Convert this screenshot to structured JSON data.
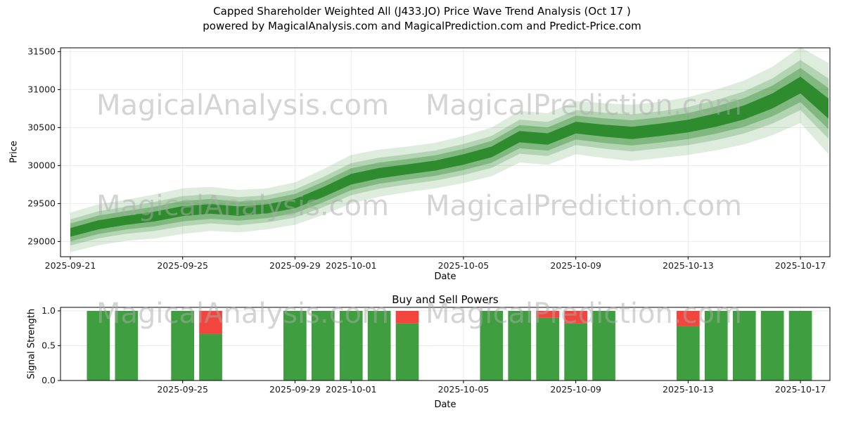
{
  "title": {
    "line1": "Capped Shareholder Weighted All (J433.JO) Price Wave Trend Analysis (Oct 17 )",
    "line2": "powered by MagicalAnalysis.com and MagicalPrediction.com and Predict-Price.com"
  },
  "watermarks": {
    "left": "MagicalAnalysis.com",
    "right": "MagicalPrediction.com"
  },
  "colors": {
    "fan_green": "#2e8b2e",
    "bar_green": "#3f9e3f",
    "bar_red": "#f2453d",
    "grid": "#ebebeb",
    "axis": "#000000",
    "watermark": "#ababab"
  },
  "chart_data": [
    {
      "type": "area",
      "name": "price-wave-fan",
      "xlabel": "Date",
      "ylabel": "Price",
      "ylim": [
        28800,
        31550
      ],
      "xlim": [
        -0.35,
        27.05
      ],
      "grid": true,
      "yticks": [
        29000,
        29500,
        30000,
        30500,
        31000,
        31500
      ],
      "xticks": [
        {
          "day": 0,
          "label": "2025-09-21"
        },
        {
          "day": 4,
          "label": "2025-09-25"
        },
        {
          "day": 8,
          "label": "2025-09-29"
        },
        {
          "day": 10,
          "label": "2025-10-01"
        },
        {
          "day": 14,
          "label": "2025-10-05"
        },
        {
          "day": 18,
          "label": "2025-10-09"
        },
        {
          "day": 22,
          "label": "2025-10-13"
        },
        {
          "day": 26,
          "label": "2025-10-17"
        }
      ],
      "days": [
        0,
        1,
        2,
        3,
        4,
        5,
        6,
        7,
        8,
        9,
        10,
        11,
        12,
        13,
        14,
        15,
        16,
        17,
        18,
        19,
        20,
        21,
        22,
        23,
        24,
        25,
        26,
        27
      ],
      "median": [
        29120,
        29220,
        29280,
        29330,
        29400,
        29430,
        29400,
        29430,
        29500,
        29650,
        29820,
        29900,
        29950,
        30000,
        30080,
        30180,
        30380,
        30350,
        30500,
        30460,
        30430,
        30470,
        30520,
        30600,
        30700,
        30850,
        31060,
        30750
      ],
      "outer_halfwidth": [
        260,
        270,
        270,
        290,
        300,
        290,
        280,
        270,
        280,
        300,
        320,
        310,
        300,
        300,
        310,
        320,
        340,
        340,
        350,
        360,
        370,
        370,
        380,
        400,
        420,
        450,
        500,
        600
      ],
      "bands": [
        {
          "name": "outer",
          "factor": 1.0,
          "opacity": 0.16
        },
        {
          "name": "mid",
          "factor": 0.66,
          "opacity": 0.24
        },
        {
          "name": "inner",
          "factor": 0.45,
          "opacity": 0.38
        },
        {
          "name": "core",
          "factor": 0.22,
          "opacity": 1.0
        }
      ]
    },
    {
      "type": "bar",
      "name": "buy-sell-powers",
      "title": "Buy and Sell Powers",
      "xlabel": "Date",
      "ylabel": "Signal Strength",
      "ylim": [
        0,
        1.05
      ],
      "xlim": [
        -0.35,
        27.05
      ],
      "bar_width_days": 0.82,
      "yticks": [
        0.0,
        0.5,
        1.0
      ],
      "xticks": [
        {
          "day": 4,
          "label": "2025-09-25"
        },
        {
          "day": 8,
          "label": "2025-09-29"
        },
        {
          "day": 10,
          "label": "2025-10-01"
        },
        {
          "day": 14,
          "label": "2025-10-05"
        },
        {
          "day": 18,
          "label": "2025-10-09"
        },
        {
          "day": 22,
          "label": "2025-10-13"
        },
        {
          "day": 26,
          "label": "2025-10-17"
        }
      ],
      "bars": [
        {
          "date": "2025-09-22",
          "day": 1,
          "buy": 1.0,
          "sell": 0.0
        },
        {
          "date": "2025-09-23",
          "day": 2,
          "buy": 1.0,
          "sell": 0.0
        },
        {
          "date": "2025-09-25",
          "day": 4,
          "buy": 1.0,
          "sell": 0.0
        },
        {
          "date": "2025-09-26",
          "day": 5,
          "buy": 0.67,
          "sell": 0.33
        },
        {
          "date": "2025-09-29",
          "day": 8,
          "buy": 1.0,
          "sell": 0.0
        },
        {
          "date": "2025-09-30",
          "day": 9,
          "buy": 1.0,
          "sell": 0.0
        },
        {
          "date": "2025-10-01",
          "day": 10,
          "buy": 1.0,
          "sell": 0.0
        },
        {
          "date": "2025-10-02",
          "day": 11,
          "buy": 1.0,
          "sell": 0.0
        },
        {
          "date": "2025-10-03",
          "day": 12,
          "buy": 0.82,
          "sell": 0.18
        },
        {
          "date": "2025-10-06",
          "day": 15,
          "buy": 1.0,
          "sell": 0.0
        },
        {
          "date": "2025-10-07",
          "day": 16,
          "buy": 1.0,
          "sell": 0.0
        },
        {
          "date": "2025-10-08",
          "day": 17,
          "buy": 0.9,
          "sell": 0.1
        },
        {
          "date": "2025-10-09",
          "day": 18,
          "buy": 0.82,
          "sell": 0.18
        },
        {
          "date": "2025-10-10",
          "day": 19,
          "buy": 1.0,
          "sell": 0.0
        },
        {
          "date": "2025-10-13",
          "day": 22,
          "buy": 0.78,
          "sell": 0.22
        },
        {
          "date": "2025-10-14",
          "day": 23,
          "buy": 1.0,
          "sell": 0.0
        },
        {
          "date": "2025-10-15",
          "day": 24,
          "buy": 1.0,
          "sell": 0.0
        },
        {
          "date": "2025-10-16",
          "day": 25,
          "buy": 1.0,
          "sell": 0.0
        },
        {
          "date": "2025-10-17",
          "day": 26,
          "buy": 1.0,
          "sell": 0.0
        }
      ]
    }
  ]
}
